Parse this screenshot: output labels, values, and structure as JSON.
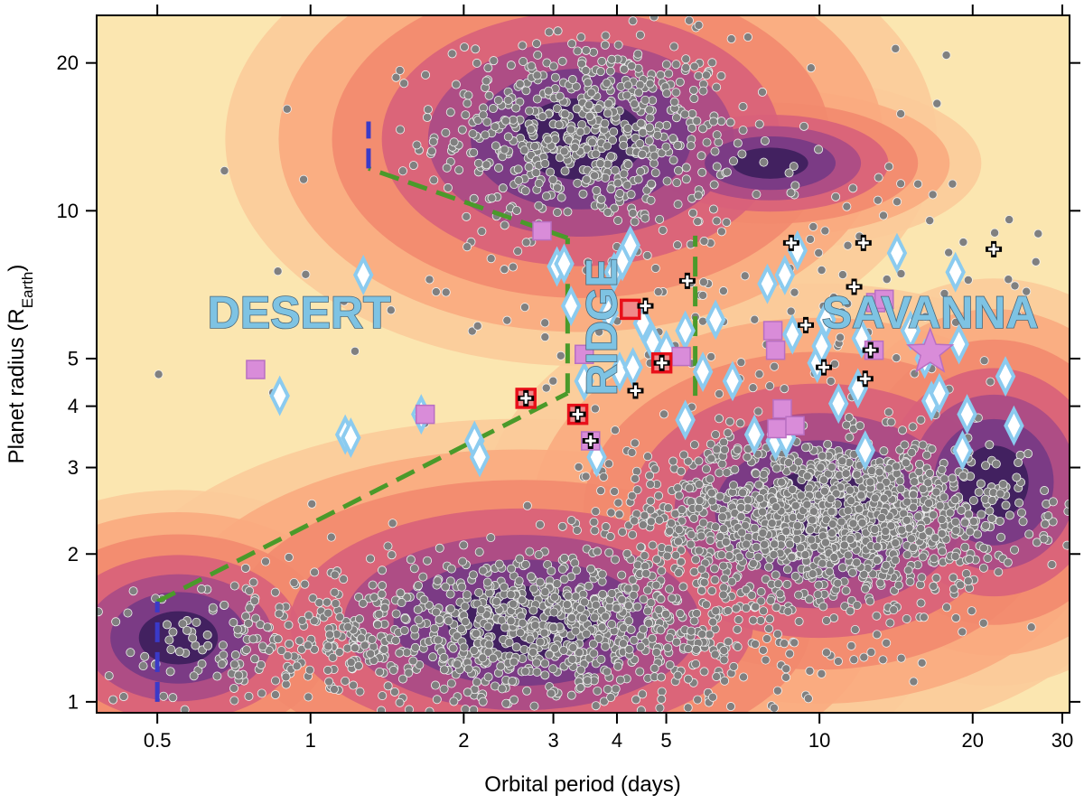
{
  "chart_data": {
    "type": "scatter",
    "xscale": "log",
    "yscale": "log",
    "xlabel": "Orbital period (days)",
    "ylabel_main": "Planet radius (R",
    "ylabel_sub": "Earth",
    "ylabel_close": ")",
    "xlim": [
      0.38,
      31
    ],
    "ylim": [
      0.95,
      25
    ],
    "x_ticks": [
      {
        "value": 0.5,
        "label": "0.5"
      },
      {
        "value": 1,
        "label": "1"
      },
      {
        "value": 2,
        "label": "2"
      },
      {
        "value": 3,
        "label": "3"
      },
      {
        "value": 4,
        "label": "4"
      },
      {
        "value": 5,
        "label": "5"
      },
      {
        "value": 10,
        "label": "10"
      },
      {
        "value": 20,
        "label": "20"
      },
      {
        "value": 30,
        "label": "30"
      }
    ],
    "y_ticks": [
      {
        "value": 1,
        "label": "1"
      },
      {
        "value": 2,
        "label": "2"
      },
      {
        "value": 3,
        "label": "3"
      },
      {
        "value": 4,
        "label": "4"
      },
      {
        "value": 5,
        "label": "5"
      },
      {
        "value": 10,
        "label": "10"
      },
      {
        "value": 20,
        "label": "20"
      }
    ],
    "colors": {
      "background": "#fbe6b0",
      "density": [
        "#fbcb9a",
        "#f9ab80",
        "#f28a6e",
        "#d8607a",
        "#a94a86",
        "#763a85",
        "#3c1f5c"
      ],
      "points": "#808080",
      "diamond_edge": "#8bcbef",
      "square_fill": "#d98cd9",
      "square_edge_red": "#e8101a",
      "boundary_green": "#4a9a2a",
      "boundary_blue": "#3a3ac8",
      "star": "#d98cd9"
    },
    "regions": [
      {
        "name": "DESERT",
        "x": 0.95,
        "y": 6.2,
        "size": 50,
        "rotate": 0
      },
      {
        "name": "SAVANNA",
        "x": 16.5,
        "y": 6.2,
        "size": 50,
        "rotate": 0
      },
      {
        "name": "RIDGE",
        "x": 3.75,
        "y": 5.8,
        "size": 48,
        "rotate": -90
      }
    ],
    "boundaries": [
      {
        "color": "green",
        "points": [
          [
            0.5,
            1.6
          ],
          [
            3.2,
            4.25
          ]
        ]
      },
      {
        "color": "green",
        "points": [
          [
            3.2,
            4.25
          ],
          [
            3.2,
            8.8
          ]
        ]
      },
      {
        "color": "green",
        "points": [
          [
            3.2,
            8.8
          ],
          [
            1.3,
            12.2
          ]
        ]
      },
      {
        "color": "green",
        "points": [
          [
            5.7,
            4.2
          ],
          [
            5.7,
            8.9
          ]
        ]
      },
      {
        "color": "blue",
        "points": [
          [
            1.3,
            12.2
          ],
          [
            1.3,
            15.2
          ]
        ]
      },
      {
        "color": "blue",
        "points": [
          [
            0.5,
            1.0
          ],
          [
            0.5,
            1.6
          ]
        ]
      }
    ],
    "density_blobs": [
      {
        "cx": 3.4,
        "cy": 14.0,
        "rx": 5.0,
        "ry": 2.9
      },
      {
        "cx": 10.0,
        "cy": 2.45,
        "rx": 4.6,
        "ry": 2.9
      },
      {
        "cx": 2.6,
        "cy": 1.45,
        "rx": 6.5,
        "ry": 2.6
      },
      {
        "cx": 0.55,
        "cy": 1.35,
        "rx": 2.7,
        "ry": 2.0
      },
      {
        "cx": 22.0,
        "cy": 2.8,
        "rx": 2.4,
        "ry": 2.6
      },
      {
        "cx": 8.0,
        "cy": 12.5,
        "rx": 2.6,
        "ry": 1.5
      }
    ],
    "planet_clouds": [
      {
        "cx": 3.5,
        "cy": 14.5,
        "sx": 1.4,
        "sy": 1.25,
        "n": 560
      },
      {
        "cx": 10.5,
        "cy": 2.4,
        "sx": 1.55,
        "sy": 1.2,
        "n": 1350
      },
      {
        "cx": 3.0,
        "cy": 1.4,
        "sx": 1.9,
        "sy": 1.2,
        "n": 1000
      },
      {
        "cx": 0.8,
        "cy": 1.3,
        "sx": 1.4,
        "sy": 1.15,
        "n": 150
      },
      {
        "cx": 7.0,
        "cy": 7.0,
        "sx": 2.2,
        "sy": 1.55,
        "n": 210
      }
    ],
    "diamonds": [
      [
        0.87,
        4.2
      ],
      [
        1.27,
        7.4
      ],
      [
        1.17,
        3.5
      ],
      [
        1.2,
        3.45
      ],
      [
        1.65,
        3.85
      ],
      [
        2.1,
        3.4
      ],
      [
        2.15,
        3.15
      ],
      [
        3.05,
        7.7
      ],
      [
        3.15,
        7.8
      ],
      [
        3.25,
        6.4
      ],
      [
        3.45,
        4.5
      ],
      [
        3.65,
        3.15
      ],
      [
        3.85,
        6.2
      ],
      [
        3.95,
        7.5
      ],
      [
        4.1,
        7.9
      ],
      [
        4.25,
        8.5
      ],
      [
        4.05,
        4.7
      ],
      [
        4.3,
        4.8
      ],
      [
        4.5,
        5.9
      ],
      [
        4.7,
        5.4
      ],
      [
        5.0,
        5.2
      ],
      [
        5.45,
        5.7
      ],
      [
        5.45,
        3.75
      ],
      [
        5.9,
        4.7
      ],
      [
        6.25,
        6.0
      ],
      [
        6.75,
        4.5
      ],
      [
        7.45,
        3.5
      ],
      [
        7.9,
        7.1
      ],
      [
        8.2,
        3.4
      ],
      [
        8.55,
        7.4
      ],
      [
        8.6,
        3.45
      ],
      [
        8.85,
        5.6
      ],
      [
        9.05,
        8.3
      ],
      [
        9.9,
        4.9
      ],
      [
        10.1,
        5.3
      ],
      [
        10.3,
        6.0
      ],
      [
        10.9,
        4.05
      ],
      [
        11.9,
        4.35
      ],
      [
        12.1,
        5.5
      ],
      [
        12.3,
        3.25
      ],
      [
        14.2,
        8.2
      ],
      [
        15.1,
        5.7
      ],
      [
        16.1,
        5.0
      ],
      [
        16.6,
        4.1
      ],
      [
        17.2,
        4.25
      ],
      [
        18.5,
        7.5
      ],
      [
        18.8,
        5.35
      ],
      [
        19.1,
        3.25
      ],
      [
        19.5,
        3.85
      ],
      [
        23.2,
        4.6
      ],
      [
        24.1,
        3.65
      ]
    ],
    "squares_pink": [
      [
        0.78,
        4.75
      ],
      [
        1.68,
        3.85
      ],
      [
        2.85,
        9.1
      ],
      [
        3.45,
        5.1
      ],
      [
        3.55,
        3.4
      ],
      [
        5.35,
        5.05
      ],
      [
        8.1,
        5.7
      ],
      [
        8.2,
        5.2
      ],
      [
        8.25,
        3.6
      ],
      [
        8.45,
        3.95
      ],
      [
        8.95,
        3.65
      ],
      [
        12.8,
        5.2
      ],
      [
        12.9,
        6.5
      ],
      [
        13.4,
        6.6
      ]
    ],
    "squares_red": [
      [
        2.65,
        4.15
      ],
      [
        3.35,
        3.85
      ],
      [
        4.25,
        6.3
      ],
      [
        4.9,
        4.9
      ]
    ],
    "crosses": [
      [
        2.65,
        4.15
      ],
      [
        3.35,
        3.85
      ],
      [
        3.55,
        3.4
      ],
      [
        4.35,
        4.3
      ],
      [
        4.55,
        6.4
      ],
      [
        4.9,
        4.9
      ],
      [
        5.5,
        7.2
      ],
      [
        8.8,
        8.6
      ],
      [
        9.4,
        5.85
      ],
      [
        10.2,
        4.8
      ],
      [
        11.7,
        7.0
      ],
      [
        12.2,
        8.6
      ],
      [
        12.3,
        4.55
      ],
      [
        12.6,
        5.2
      ],
      [
        22.0,
        8.35
      ]
    ],
    "star": {
      "x": 16.5,
      "y": 5.15
    }
  }
}
